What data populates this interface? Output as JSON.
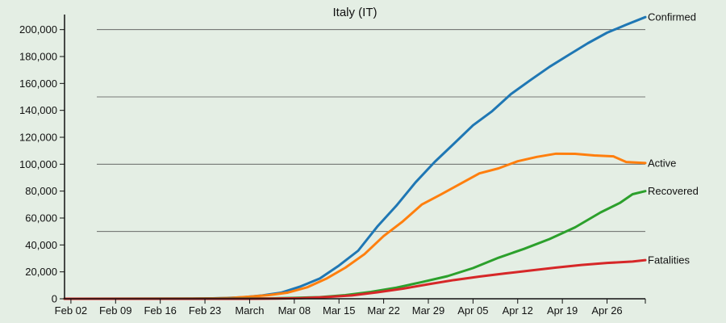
{
  "chart_data": {
    "type": "line",
    "title": "Italy (IT)",
    "xlabel": "",
    "ylabel": "",
    "x_start": "2020-02-01",
    "x_end": "2020-05-02",
    "ylim": [
      0,
      210000
    ],
    "y_ticks": [
      0,
      20000,
      40000,
      60000,
      80000,
      100000,
      120000,
      140000,
      160000,
      180000,
      200000
    ],
    "y_tick_labels": [
      "0",
      "20,000",
      "40,000",
      "60,000",
      "80,000",
      "100,000",
      "120,000",
      "140,000",
      "160,000",
      "180,000",
      "200,000"
    ],
    "x_ticks": [
      "2020-02-02",
      "2020-02-09",
      "2020-02-16",
      "2020-02-23",
      "2020-03-01",
      "2020-03-08",
      "2020-03-15",
      "2020-03-22",
      "2020-03-29",
      "2020-04-05",
      "2020-04-12",
      "2020-04-19",
      "2020-04-26"
    ],
    "x_tick_labels": [
      "Feb 02",
      "Feb 09",
      "Feb 16",
      "Feb 23",
      "March",
      "Mar 08",
      "Mar 15",
      "Mar 22",
      "Mar 29",
      "Apr 05",
      "Apr 12",
      "Apr 19",
      "Apr 26"
    ],
    "gridlines": [
      50000,
      100000,
      150000,
      200000
    ],
    "grid": true,
    "legend": "series labels at right end of lines",
    "series": [
      {
        "name": "Confirmed",
        "color": "#1f77b4",
        "x": [
          "2020-02-01",
          "2020-02-21",
          "2020-02-23",
          "2020-02-26",
          "2020-02-29",
          "2020-03-03",
          "2020-03-06",
          "2020-03-09",
          "2020-03-12",
          "2020-03-15",
          "2020-03-18",
          "2020-03-21",
          "2020-03-24",
          "2020-03-27",
          "2020-03-30",
          "2020-04-02",
          "2020-04-05",
          "2020-04-08",
          "2020-04-11",
          "2020-04-14",
          "2020-04-17",
          "2020-04-20",
          "2020-04-23",
          "2020-04-26",
          "2020-04-29",
          "2020-05-02"
        ],
        "values": [
          0,
          0,
          150,
          500,
          1100,
          2500,
          4600,
          9200,
          15100,
          24700,
          35700,
          53600,
          69200,
          86500,
          101700,
          115200,
          128900,
          139400,
          152300,
          162500,
          172400,
          181200,
          189900,
          197700,
          203600,
          209300
        ]
      },
      {
        "name": "Active",
        "color": "#ff7f0e",
        "x": [
          "2020-02-01",
          "2020-02-21",
          "2020-02-24",
          "2020-02-27",
          "2020-03-01",
          "2020-03-04",
          "2020-03-07",
          "2020-03-10",
          "2020-03-13",
          "2020-03-16",
          "2020-03-19",
          "2020-03-22",
          "2020-03-25",
          "2020-03-28",
          "2020-03-31",
          "2020-04-03",
          "2020-04-06",
          "2020-04-09",
          "2020-04-12",
          "2020-04-15",
          "2020-04-18",
          "2020-04-21",
          "2020-04-24",
          "2020-04-27",
          "2020-04-29",
          "2020-05-02"
        ],
        "values": [
          0,
          0,
          200,
          600,
          1600,
          2700,
          4600,
          8500,
          14900,
          23100,
          33200,
          46600,
          57500,
          70100,
          77600,
          85400,
          93200,
          96900,
          102200,
          105400,
          107800,
          107700,
          106500,
          105800,
          101600,
          100900
        ]
      },
      {
        "name": "Recovered",
        "color": "#2ca02c",
        "x": [
          "2020-02-01",
          "2020-03-04",
          "2020-03-08",
          "2020-03-12",
          "2020-03-16",
          "2020-03-20",
          "2020-03-24",
          "2020-03-28",
          "2020-04-01",
          "2020-04-05",
          "2020-04-09",
          "2020-04-13",
          "2020-04-17",
          "2020-04-21",
          "2020-04-25",
          "2020-04-28",
          "2020-04-30",
          "2020-05-02"
        ],
        "values": [
          0,
          300,
          700,
          1200,
          2700,
          5100,
          8300,
          12400,
          16800,
          22800,
          30500,
          37100,
          44400,
          53100,
          64200,
          71200,
          77700,
          80000
        ]
      },
      {
        "name": "Fatalities",
        "color": "#d62728",
        "x": [
          "2020-02-01",
          "2020-03-01",
          "2020-03-05",
          "2020-03-09",
          "2020-03-13",
          "2020-03-17",
          "2020-03-21",
          "2020-03-25",
          "2020-03-29",
          "2020-04-02",
          "2020-04-06",
          "2020-04-10",
          "2020-04-14",
          "2020-04-18",
          "2020-04-22",
          "2020-04-26",
          "2020-04-30",
          "2020-05-02"
        ],
        "values": [
          0,
          30,
          150,
          460,
          1270,
          2500,
          4800,
          7500,
          10800,
          13900,
          16500,
          18800,
          21000,
          23200,
          25100,
          26600,
          27700,
          28700
        ]
      }
    ]
  }
}
